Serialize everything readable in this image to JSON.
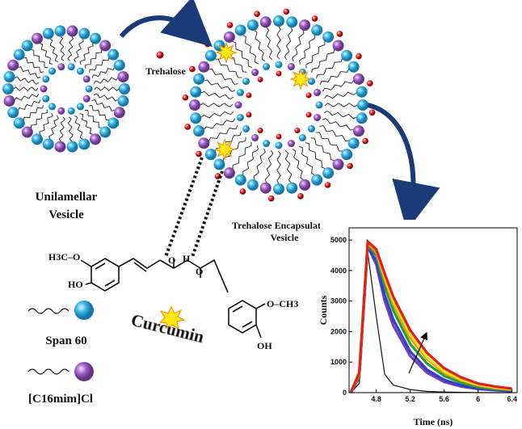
{
  "diagram": {
    "unilamellar_label": [
      "Unilamellar",
      "Vesicle"
    ],
    "trehalose_label": "Trehalose",
    "encapsulated_label": [
      "Trehalose Encapsulated",
      "Vesicle"
    ],
    "structure_labels": {
      "methoxy_left": "H3C–O",
      "hydroxy_left": "HO",
      "keto_o": "O",
      "enol_h": "H",
      "enol_o": "O",
      "methoxy_right": "O–CH3",
      "hydroxy_right": "OH"
    },
    "curcumin_label": "Curcumin",
    "legend": {
      "span60": "Span 60",
      "c16mim": "[C16mim]Cl"
    }
  },
  "chart_data": {
    "type": "line",
    "x_label": "Time (ns)",
    "y_label": "Counts",
    "x": [
      4.5,
      4.6,
      4.7,
      4.8,
      4.9,
      5.0,
      5.2,
      5.4,
      5.6,
      5.8,
      6.0,
      6.2,
      6.4
    ],
    "series": [
      {
        "color": "#111111",
        "values": [
          0,
          300,
          4600,
          2500,
          600,
          250,
          100,
          40,
          20,
          10,
          0,
          0,
          0
        ]
      },
      {
        "color": "#7b3fb5",
        "values": [
          0,
          500,
          4800,
          4200,
          3000,
          2200,
          1200,
          650,
          350,
          200,
          120,
          80,
          50
        ]
      },
      {
        "color": "#2f3fd0",
        "values": [
          0,
          500,
          4800,
          4300,
          3200,
          2400,
          1350,
          750,
          420,
          240,
          140,
          90,
          60
        ]
      },
      {
        "color": "#2aa02a",
        "values": [
          0,
          550,
          4850,
          4500,
          3500,
          2700,
          1600,
          950,
          550,
          320,
          190,
          120,
          80
        ]
      },
      {
        "color": "#f08a1c",
        "values": [
          0,
          600,
          4900,
          4600,
          3700,
          2900,
          1800,
          1100,
          650,
          400,
          240,
          150,
          100
        ]
      },
      {
        "color": "#e8e21a",
        "values": [
          0,
          700,
          4950,
          4700,
          3800,
          3000,
          1900,
          1150,
          700,
          430,
          260,
          170,
          110
        ]
      },
      {
        "color": "#e02020",
        "values": [
          0,
          650,
          4950,
          4700,
          3900,
          3150,
          2050,
          1300,
          800,
          500,
          300,
          200,
          130
        ]
      }
    ],
    "xlim": [
      4.48,
      6.46
    ],
    "ylim": [
      0,
      5400
    ],
    "xticks": [
      4.8,
      5.2,
      5.6,
      6.0,
      6.4
    ],
    "yticks": [
      0,
      1000,
      2000,
      3000,
      4000,
      5000
    ]
  }
}
